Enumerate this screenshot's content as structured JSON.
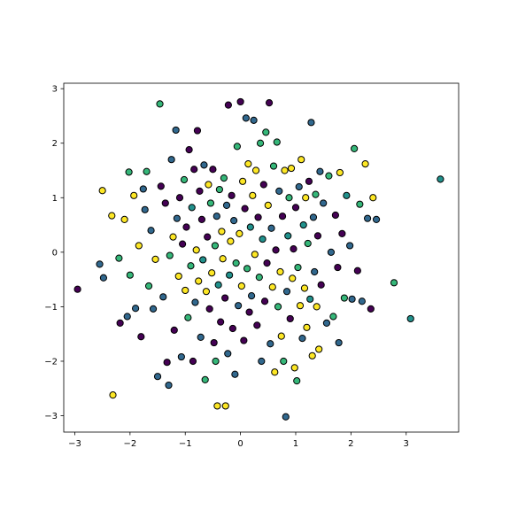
{
  "chart_data": {
    "type": "scatter",
    "title": "",
    "xlabel": "",
    "ylabel": "",
    "xlim": [
      -3.2,
      3.95
    ],
    "ylim": [
      -3.3,
      3.1
    ],
    "grid": false,
    "legend": "none",
    "x_ticks": [
      -3,
      -2,
      -1,
      0,
      1,
      2,
      3
    ],
    "y_ticks": [
      -3,
      -2,
      -1,
      0,
      1,
      2,
      3
    ],
    "x_tick_labels": [
      "−3",
      "−2",
      "−1",
      "0",
      "1",
      "2",
      "3"
    ],
    "y_tick_labels": [
      "−3",
      "−2",
      "−1",
      "0",
      "1",
      "2",
      "3"
    ],
    "marker_edge_color": "#000000",
    "colormap": "viridis",
    "class_colors": [
      "#440154",
      "#31688e",
      "#35b779",
      "#fde725",
      "#21918c"
    ],
    "points": [
      {
        "x": -2.95,
        "y": -0.68,
        "c": 0
      },
      {
        "x": -2.55,
        "y": -0.22,
        "c": 1
      },
      {
        "x": -2.48,
        "y": -0.47,
        "c": 1
      },
      {
        "x": -2.5,
        "y": 1.13,
        "c": 3
      },
      {
        "x": -2.33,
        "y": 0.67,
        "c": 3
      },
      {
        "x": -2.31,
        "y": -2.62,
        "c": 3
      },
      {
        "x": -2.2,
        "y": -0.11,
        "c": 2
      },
      {
        "x": -2.18,
        "y": -1.3,
        "c": 0
      },
      {
        "x": -2.1,
        "y": 0.6,
        "c": 3
      },
      {
        "x": -2.05,
        "y": -1.18,
        "c": 1
      },
      {
        "x": -2.02,
        "y": 1.47,
        "c": 2
      },
      {
        "x": -2.0,
        "y": -0.42,
        "c": 2
      },
      {
        "x": -1.93,
        "y": 1.04,
        "c": 3
      },
      {
        "x": -1.9,
        "y": -1.03,
        "c": 1
      },
      {
        "x": -1.84,
        "y": 0.12,
        "c": 3
      },
      {
        "x": -1.8,
        "y": -1.55,
        "c": 0
      },
      {
        "x": -1.76,
        "y": 1.16,
        "c": 1
      },
      {
        "x": -1.73,
        "y": 0.78,
        "c": 1
      },
      {
        "x": -1.7,
        "y": 1.48,
        "c": 2
      },
      {
        "x": -1.66,
        "y": -0.62,
        "c": 2
      },
      {
        "x": -1.62,
        "y": 0.4,
        "c": 1
      },
      {
        "x": -1.58,
        "y": -1.04,
        "c": 1
      },
      {
        "x": -1.54,
        "y": -0.13,
        "c": 3
      },
      {
        "x": -1.5,
        "y": -2.28,
        "c": 1
      },
      {
        "x": -1.46,
        "y": 2.72,
        "c": 2
      },
      {
        "x": -1.44,
        "y": 1.21,
        "c": 0
      },
      {
        "x": -1.4,
        "y": -0.82,
        "c": 1
      },
      {
        "x": -1.36,
        "y": 0.9,
        "c": 0
      },
      {
        "x": -1.33,
        "y": -2.02,
        "c": 0
      },
      {
        "x": -1.3,
        "y": -2.44,
        "c": 1
      },
      {
        "x": -1.28,
        "y": -0.06,
        "c": 2
      },
      {
        "x": -1.25,
        "y": 1.7,
        "c": 1
      },
      {
        "x": -1.22,
        "y": 0.28,
        "c": 3
      },
      {
        "x": -1.2,
        "y": -1.43,
        "c": 0
      },
      {
        "x": -1.17,
        "y": 2.24,
        "c": 1
      },
      {
        "x": -1.15,
        "y": 0.62,
        "c": 1
      },
      {
        "x": -1.12,
        "y": -0.44,
        "c": 3
      },
      {
        "x": -1.1,
        "y": 1.0,
        "c": 0
      },
      {
        "x": -1.07,
        "y": -1.92,
        "c": 1
      },
      {
        "x": -1.05,
        "y": 0.15,
        "c": 0
      },
      {
        "x": -1.02,
        "y": 1.33,
        "c": 2
      },
      {
        "x": -1.0,
        "y": -0.7,
        "c": 3
      },
      {
        "x": -0.98,
        "y": 0.46,
        "c": 0
      },
      {
        "x": -0.95,
        "y": -1.2,
        "c": 2
      },
      {
        "x": -0.93,
        "y": 1.88,
        "c": 0
      },
      {
        "x": -0.9,
        "y": -0.25,
        "c": 2
      },
      {
        "x": -0.88,
        "y": 0.82,
        "c": 4
      },
      {
        "x": -0.86,
        "y": -2.0,
        "c": 0
      },
      {
        "x": -0.84,
        "y": 1.52,
        "c": 0
      },
      {
        "x": -0.82,
        "y": -0.92,
        "c": 1
      },
      {
        "x": -0.8,
        "y": 0.04,
        "c": 3
      },
      {
        "x": -0.78,
        "y": 2.23,
        "c": 0
      },
      {
        "x": -0.76,
        "y": -0.53,
        "c": 3
      },
      {
        "x": -0.74,
        "y": 1.12,
        "c": 0
      },
      {
        "x": -0.72,
        "y": -1.56,
        "c": 1
      },
      {
        "x": -0.7,
        "y": 0.6,
        "c": 0
      },
      {
        "x": -0.68,
        "y": -0.14,
        "c": 4
      },
      {
        "x": -0.66,
        "y": 1.6,
        "c": 1
      },
      {
        "x": -0.64,
        "y": -2.34,
        "c": 2
      },
      {
        "x": -0.62,
        "y": -0.72,
        "c": 3
      },
      {
        "x": -0.6,
        "y": 0.28,
        "c": 0
      },
      {
        "x": -0.58,
        "y": 1.24,
        "c": 3
      },
      {
        "x": -0.56,
        "y": -1.04,
        "c": 0
      },
      {
        "x": -0.54,
        "y": 0.9,
        "c": 2
      },
      {
        "x": -0.52,
        "y": -0.38,
        "c": 3
      },
      {
        "x": -0.5,
        "y": 1.52,
        "c": 0
      },
      {
        "x": -0.48,
        "y": -1.66,
        "c": 0
      },
      {
        "x": -0.46,
        "y": 0.12,
        "c": 2
      },
      {
        "x": -0.45,
        "y": -2.0,
        "c": 2
      },
      {
        "x": -0.43,
        "y": 0.66,
        "c": 1
      },
      {
        "x": -0.42,
        "y": -2.82,
        "c": 3
      },
      {
        "x": -0.4,
        "y": -0.6,
        "c": 4
      },
      {
        "x": -0.38,
        "y": 1.15,
        "c": 2
      },
      {
        "x": -0.36,
        "y": -1.28,
        "c": 0
      },
      {
        "x": -0.34,
        "y": 0.38,
        "c": 3
      },
      {
        "x": -0.32,
        "y": -0.12,
        "c": 3
      },
      {
        "x": -0.3,
        "y": 1.36,
        "c": 2
      },
      {
        "x": -0.28,
        "y": -0.84,
        "c": 0
      },
      {
        "x": -0.27,
        "y": -2.82,
        "c": 3
      },
      {
        "x": -0.25,
        "y": 0.86,
        "c": 1
      },
      {
        "x": -0.23,
        "y": -1.86,
        "c": 1
      },
      {
        "x": -0.22,
        "y": 2.7,
        "c": 0
      },
      {
        "x": -0.2,
        "y": -0.42,
        "c": 4
      },
      {
        "x": -0.18,
        "y": 0.2,
        "c": 3
      },
      {
        "x": -0.16,
        "y": 1.04,
        "c": 0
      },
      {
        "x": -0.14,
        "y": -1.4,
        "c": 0
      },
      {
        "x": -0.12,
        "y": 0.58,
        "c": 1
      },
      {
        "x": -0.1,
        "y": -2.24,
        "c": 1
      },
      {
        "x": -0.08,
        "y": -0.2,
        "c": 2
      },
      {
        "x": -0.06,
        "y": 1.94,
        "c": 2
      },
      {
        "x": -0.04,
        "y": -0.98,
        "c": 1
      },
      {
        "x": -0.02,
        "y": 0.34,
        "c": 3
      },
      {
        "x": 0.0,
        "y": 2.76,
        "c": 0
      },
      {
        "x": 0.02,
        "y": -0.62,
        "c": 3
      },
      {
        "x": 0.04,
        "y": 1.3,
        "c": 3
      },
      {
        "x": 0.06,
        "y": -1.62,
        "c": 0
      },
      {
        "x": 0.08,
        "y": 0.8,
        "c": 0
      },
      {
        "x": 0.1,
        "y": 2.46,
        "c": 1
      },
      {
        "x": 0.12,
        "y": -0.3,
        "c": 2
      },
      {
        "x": 0.14,
        "y": 1.62,
        "c": 3
      },
      {
        "x": 0.16,
        "y": -1.1,
        "c": 0
      },
      {
        "x": 0.18,
        "y": 0.46,
        "c": 4
      },
      {
        "x": 0.2,
        "y": -0.8,
        "c": 1
      },
      {
        "x": 0.22,
        "y": 1.04,
        "c": 3
      },
      {
        "x": 0.24,
        "y": 2.42,
        "c": 1
      },
      {
        "x": 0.26,
        "y": -0.04,
        "c": 3
      },
      {
        "x": 0.28,
        "y": 1.5,
        "c": 3
      },
      {
        "x": 0.3,
        "y": -1.34,
        "c": 0
      },
      {
        "x": 0.32,
        "y": 0.64,
        "c": 0
      },
      {
        "x": 0.34,
        "y": -0.46,
        "c": 2
      },
      {
        "x": 0.36,
        "y": 2.0,
        "c": 2
      },
      {
        "x": 0.38,
        "y": -2.0,
        "c": 1
      },
      {
        "x": 0.4,
        "y": 0.24,
        "c": 4
      },
      {
        "x": 0.42,
        "y": 1.24,
        "c": 0
      },
      {
        "x": 0.44,
        "y": -0.9,
        "c": 0
      },
      {
        "x": 0.46,
        "y": 2.2,
        "c": 2
      },
      {
        "x": 0.48,
        "y": -0.2,
        "c": 0
      },
      {
        "x": 0.5,
        "y": 0.86,
        "c": 3
      },
      {
        "x": 0.52,
        "y": 2.74,
        "c": 0
      },
      {
        "x": 0.54,
        "y": -1.68,
        "c": 1
      },
      {
        "x": 0.56,
        "y": 0.44,
        "c": 1
      },
      {
        "x": 0.58,
        "y": -0.64,
        "c": 3
      },
      {
        "x": 0.6,
        "y": 1.58,
        "c": 2
      },
      {
        "x": 0.62,
        "y": -2.2,
        "c": 3
      },
      {
        "x": 0.64,
        "y": 0.04,
        "c": 0
      },
      {
        "x": 0.66,
        "y": 2.02,
        "c": 2
      },
      {
        "x": 0.68,
        "y": -1.0,
        "c": 2
      },
      {
        "x": 0.7,
        "y": 1.12,
        "c": 1
      },
      {
        "x": 0.72,
        "y": -0.36,
        "c": 3
      },
      {
        "x": 0.74,
        "y": -1.54,
        "c": 3
      },
      {
        "x": 0.76,
        "y": 0.66,
        "c": 0
      },
      {
        "x": 0.78,
        "y": -2.0,
        "c": 2
      },
      {
        "x": 0.8,
        "y": 1.5,
        "c": 3
      },
      {
        "x": 0.82,
        "y": -3.02,
        "c": 1
      },
      {
        "x": 0.84,
        "y": -0.72,
        "c": 1
      },
      {
        "x": 0.86,
        "y": 0.3,
        "c": 4
      },
      {
        "x": 0.88,
        "y": 1.0,
        "c": 2
      },
      {
        "x": 0.9,
        "y": -1.22,
        "c": 0
      },
      {
        "x": 0.92,
        "y": 1.54,
        "c": 3
      },
      {
        "x": 0.94,
        "y": -0.48,
        "c": 3
      },
      {
        "x": 0.96,
        "y": 0.06,
        "c": 0
      },
      {
        "x": 0.98,
        "y": -2.12,
        "c": 3
      },
      {
        "x": 1.0,
        "y": 0.82,
        "c": 0
      },
      {
        "x": 1.02,
        "y": -2.36,
        "c": 2
      },
      {
        "x": 1.04,
        "y": -0.28,
        "c": 2
      },
      {
        "x": 1.06,
        "y": 1.2,
        "c": 1
      },
      {
        "x": 1.08,
        "y": -0.98,
        "c": 3
      },
      {
        "x": 1.1,
        "y": 1.7,
        "c": 3
      },
      {
        "x": 1.12,
        "y": -1.58,
        "c": 1
      },
      {
        "x": 1.14,
        "y": 0.5,
        "c": 4
      },
      {
        "x": 1.16,
        "y": -0.66,
        "c": 3
      },
      {
        "x": 1.18,
        "y": 1.0,
        "c": 3
      },
      {
        "x": 1.2,
        "y": -1.38,
        "c": 3
      },
      {
        "x": 1.22,
        "y": 0.16,
        "c": 2
      },
      {
        "x": 1.24,
        "y": 1.3,
        "c": 0
      },
      {
        "x": 1.26,
        "y": -0.86,
        "c": 4
      },
      {
        "x": 1.28,
        "y": 2.38,
        "c": 1
      },
      {
        "x": 1.3,
        "y": -1.9,
        "c": 3
      },
      {
        "x": 1.32,
        "y": 0.64,
        "c": 1
      },
      {
        "x": 1.34,
        "y": -0.36,
        "c": 1
      },
      {
        "x": 1.36,
        "y": 1.06,
        "c": 2
      },
      {
        "x": 1.38,
        "y": -1.0,
        "c": 3
      },
      {
        "x": 1.4,
        "y": 0.3,
        "c": 0
      },
      {
        "x": 1.42,
        "y": -1.78,
        "c": 3
      },
      {
        "x": 1.44,
        "y": 1.48,
        "c": 1
      },
      {
        "x": 1.46,
        "y": -0.6,
        "c": 0
      },
      {
        "x": 1.5,
        "y": 0.9,
        "c": 1
      },
      {
        "x": 1.56,
        "y": -1.3,
        "c": 1
      },
      {
        "x": 1.6,
        "y": 1.4,
        "c": 2
      },
      {
        "x": 1.64,
        "y": 0.0,
        "c": 1
      },
      {
        "x": 1.68,
        "y": -1.18,
        "c": 2
      },
      {
        "x": 1.72,
        "y": 0.68,
        "c": 0
      },
      {
        "x": 1.76,
        "y": -0.28,
        "c": 0
      },
      {
        "x": 1.78,
        "y": -1.66,
        "c": 1
      },
      {
        "x": 1.8,
        "y": 1.46,
        "c": 3
      },
      {
        "x": 1.84,
        "y": 0.34,
        "c": 0
      },
      {
        "x": 1.88,
        "y": -0.84,
        "c": 2
      },
      {
        "x": 1.92,
        "y": 1.04,
        "c": 4
      },
      {
        "x": 1.98,
        "y": 0.12,
        "c": 1
      },
      {
        "x": 2.02,
        "y": -0.86,
        "c": 1
      },
      {
        "x": 2.06,
        "y": 1.9,
        "c": 2
      },
      {
        "x": 2.12,
        "y": -0.34,
        "c": 0
      },
      {
        "x": 2.16,
        "y": 0.88,
        "c": 2
      },
      {
        "x": 2.2,
        "y": -0.9,
        "c": 1
      },
      {
        "x": 2.26,
        "y": 1.62,
        "c": 3
      },
      {
        "x": 2.3,
        "y": 0.62,
        "c": 1
      },
      {
        "x": 2.36,
        "y": -1.04,
        "c": 0
      },
      {
        "x": 2.4,
        "y": 1.0,
        "c": 3
      },
      {
        "x": 2.46,
        "y": 0.6,
        "c": 1
      },
      {
        "x": 2.78,
        "y": -0.56,
        "c": 2
      },
      {
        "x": 3.08,
        "y": -1.22,
        "c": 4
      },
      {
        "x": 3.62,
        "y": 1.34,
        "c": 4
      }
    ]
  }
}
